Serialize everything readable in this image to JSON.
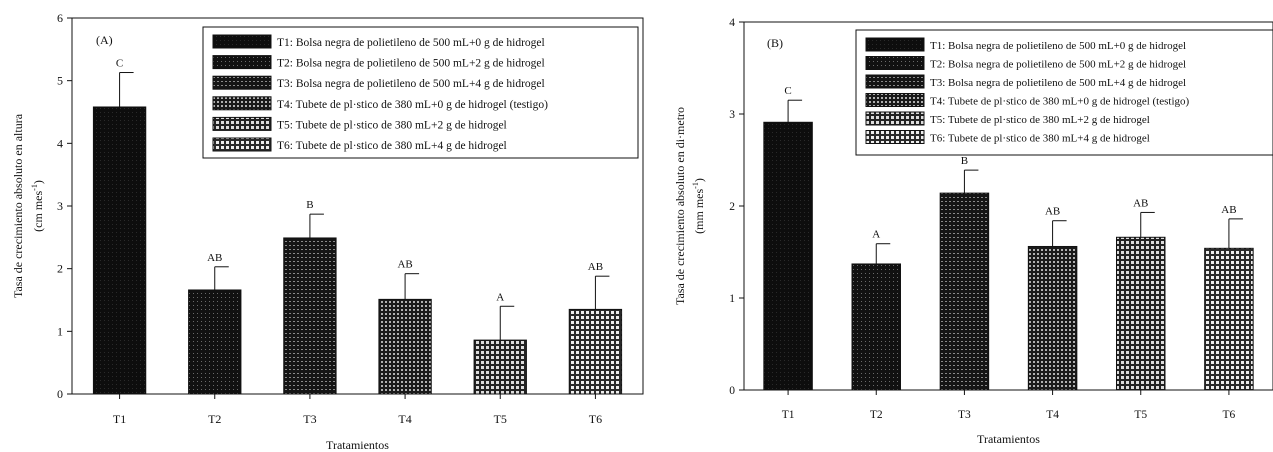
{
  "chart_data": [
    {
      "type": "bar",
      "panel_label": "(A)",
      "categories": [
        "T1",
        "T2",
        "T3",
        "T4",
        "T5",
        "T6"
      ],
      "values": [
        4.58,
        1.66,
        2.49,
        1.51,
        0.86,
        1.35
      ],
      "error": [
        0.55,
        0.37,
        0.38,
        0.41,
        0.54,
        0.53
      ],
      "letters": [
        "C",
        "AB",
        "B",
        "AB",
        "A",
        "AB"
      ],
      "xlabel": "Tratamientos",
      "ylabel": "Tasa de crecimiento absoluto en altura",
      "yunit": "(cm mes",
      "yunit_sup": "-1",
      "yunit_close": ")",
      "ylim": [
        0,
        6
      ],
      "yticks": [
        "0",
        "1",
        "2",
        "3",
        "4",
        "5",
        "6"
      ],
      "grid": false,
      "legend_position": "top-right",
      "legend": [
        "T1: Bolsa negra de polietileno de 500 mL+0 g de hidrogel",
        "T2: Bolsa negra de polietileno de 500 mL+2 g de hidrogel",
        "T3: Bolsa negra de polietileno de 500 mL+4 g de hidrogel",
        "T4: Tubete de pl·stico de 380 mL+0 g de hidrogel (testigo)",
        "T5: Tubete de pl·stico de 380 mL+2 g de hidrogel",
        "T6: Tubete de pl·stico de 380 mL+4 g de hidrogel"
      ],
      "patterns": [
        "solid",
        "dense",
        "dense2",
        "medium",
        "open",
        "open2"
      ]
    },
    {
      "type": "bar",
      "panel_label": "(B)",
      "categories": [
        "T1",
        "T2",
        "T3",
        "T4",
        "T5",
        "T6"
      ],
      "values": [
        2.91,
        1.37,
        2.14,
        1.56,
        1.66,
        1.54
      ],
      "error": [
        0.24,
        0.22,
        0.25,
        0.28,
        0.27,
        0.32
      ],
      "letters": [
        "C",
        "A",
        "B",
        "AB",
        "AB",
        "AB"
      ],
      "xlabel": "Tratamientos",
      "ylabel": "Tasa de crecimiento absoluto en di·metro",
      "yunit": "(mm mes",
      "yunit_sup": "-1",
      "yunit_close": ")",
      "ylim": [
        0,
        4
      ],
      "yticks": [
        "0",
        "1",
        "2",
        "3",
        "4"
      ],
      "grid": false,
      "legend_position": "top-right",
      "legend": [
        "T1: Bolsa negra de polietileno de 500 mL+0 g de hidrogel",
        "T2: Bolsa negra de polietileno de 500 mL+2 g de hidrogel",
        "T3: Bolsa negra de polietileno de 500 mL+4 g de hidrogel",
        "T4: Tubete de pl·stico de 380 mL+0 g de hidrogel (testigo)",
        "T5: Tubete de pl·stico de 380 mL+2 g de hidrogel",
        "T6: Tubete de pl·stico de 380 mL+4 g de hidrogel"
      ],
      "patterns": [
        "solid",
        "dense",
        "dense2",
        "medium",
        "open",
        "open2"
      ]
    }
  ]
}
